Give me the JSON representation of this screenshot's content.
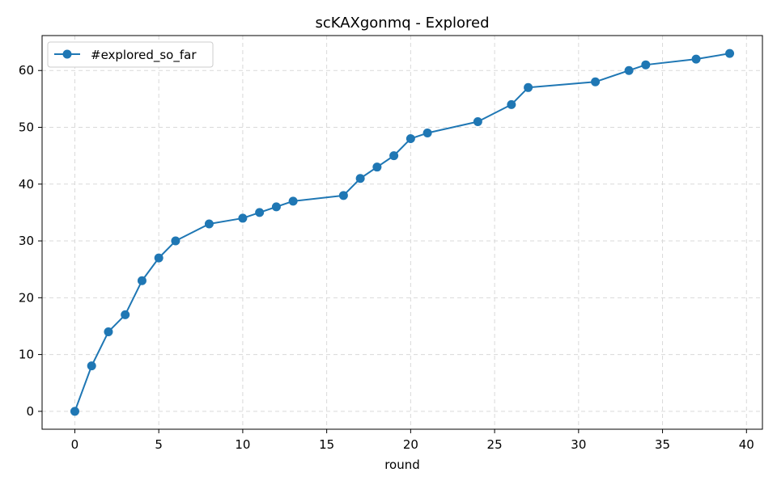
{
  "chart_data": {
    "type": "line",
    "title": "scKAXgonmq - Explored",
    "xlabel": "round",
    "ylabel": "",
    "xlim": [
      -1.95,
      40.95
    ],
    "ylim": [
      -3.15,
      66.15
    ],
    "xticks": [
      0,
      5,
      10,
      15,
      20,
      25,
      30,
      35,
      40
    ],
    "yticks": [
      0,
      10,
      20,
      30,
      40,
      50,
      60
    ],
    "grid": true,
    "legend_position": "upper-left",
    "series": [
      {
        "name": "#explored_so_far",
        "color": "#1f77b4",
        "marker": "circle",
        "x": [
          0,
          1,
          2,
          3,
          4,
          5,
          6,
          8,
          10,
          11,
          12,
          13,
          16,
          17,
          18,
          19,
          20,
          21,
          24,
          26,
          27,
          31,
          33,
          34,
          37,
          39
        ],
        "y": [
          0,
          8,
          14,
          17,
          23,
          27,
          30,
          33,
          34,
          35,
          36,
          37,
          38,
          41,
          43,
          45,
          48,
          49,
          51,
          54,
          57,
          58,
          60,
          61,
          62,
          63
        ]
      }
    ]
  }
}
